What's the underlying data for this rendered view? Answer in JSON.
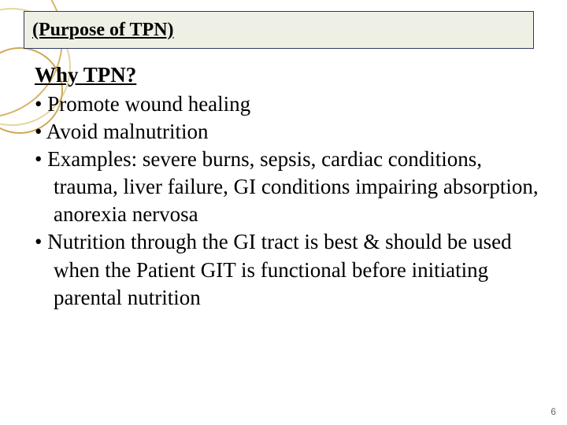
{
  "title": "(Purpose of TPN)",
  "subheading": "Why TPN?",
  "bullets": [
    "Promote wound healing",
    "Avoid malnutrition",
    "Examples: severe burns, sepsis, cardiac conditions, trauma, liver failure, GI conditions impairing absorption, anorexia nervosa",
    "Nutrition through the GI tract is best & should be used when the Patient GIT is functional before initiating parental nutrition"
  ],
  "page_number": "6",
  "colors": {
    "title_box_bg": "#eef0e5",
    "title_box_border": "#2f3b63",
    "text": "#000000",
    "page_number": "#666666",
    "circle1": "#d9b36b",
    "circle2": "#e8d4a0",
    "circle3": "#cfa856"
  },
  "fonts": {
    "body_family": "Times New Roman",
    "title_size_pt": 24,
    "body_size_pt": 27,
    "page_num_size_pt": 12
  }
}
